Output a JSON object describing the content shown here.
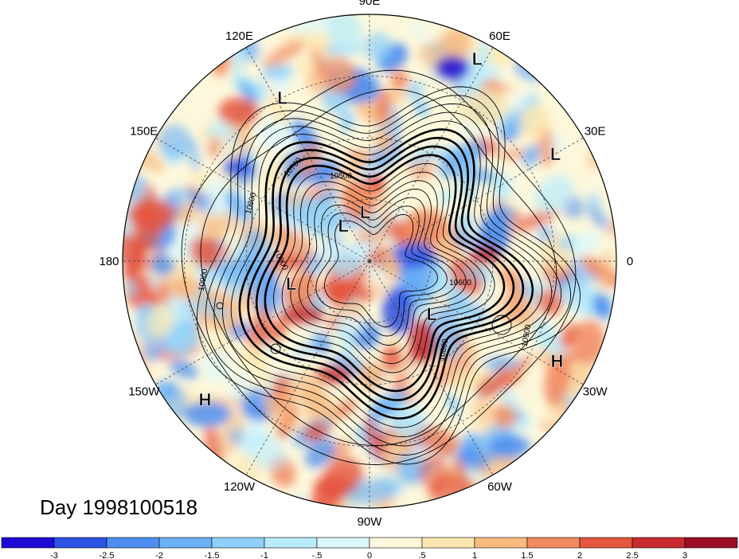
{
  "title": "Day 1998100518",
  "map": {
    "projection": "north-polar-stereographic",
    "longitude_labels": [
      {
        "text": "90E",
        "lon": 90
      },
      {
        "text": "60E",
        "lon": 60
      },
      {
        "text": "30E",
        "lon": 30
      },
      {
        "text": "0",
        "lon": 0
      },
      {
        "text": "30W",
        "lon": -30
      },
      {
        "text": "60W",
        "lon": -60
      },
      {
        "text": "90W",
        "lon": -90
      },
      {
        "text": "120W",
        "lon": -120
      },
      {
        "text": "150W",
        "lon": -150
      },
      {
        "text": "180",
        "lon": 180
      },
      {
        "text": "150E",
        "lon": 150
      },
      {
        "text": "120E",
        "lon": 120
      }
    ],
    "pressure_centers": [
      {
        "type": "L",
        "lon": 62,
        "r": 0.93
      },
      {
        "type": "L",
        "lon": 118,
        "r": 0.75
      },
      {
        "type": "L",
        "lon": 30,
        "r": 0.87
      },
      {
        "type": "L",
        "lon": 126,
        "r": 0.18
      },
      {
        "type": "L",
        "lon": 95,
        "r": 0.2
      },
      {
        "type": "L",
        "lon": -164,
        "r": 0.33
      },
      {
        "type": "L",
        "lon": -40,
        "r": 0.33
      },
      {
        "type": "H",
        "lon": -28,
        "r": 0.86
      },
      {
        "type": "H",
        "lon": -140,
        "r": 0.87
      }
    ],
    "contour_labels": [
      {
        "text": "10700"
      },
      {
        "text": "10500"
      },
      {
        "text": "10800"
      },
      {
        "text": "10900"
      },
      {
        "text": "10600"
      },
      {
        "text": "10800"
      },
      {
        "text": "10900"
      },
      {
        "text": "10800"
      }
    ]
  },
  "colorbar": {
    "colors": [
      "#1e0ad4",
      "#2d52e6",
      "#4d8ef0",
      "#6cb0f5",
      "#8fd0fa",
      "#b9ecfb",
      "#dcf7fb",
      "#fdf8dc",
      "#fde7b0",
      "#f9ba80",
      "#f18a60",
      "#e5553f",
      "#c92a2f",
      "#9c0e24"
    ],
    "ticks": [
      "-3",
      "-2.5",
      "-2",
      "-1.5",
      "-1",
      "-.5",
      "0",
      ".5",
      "1",
      "1.5",
      "2",
      "2.5",
      "3"
    ]
  }
}
